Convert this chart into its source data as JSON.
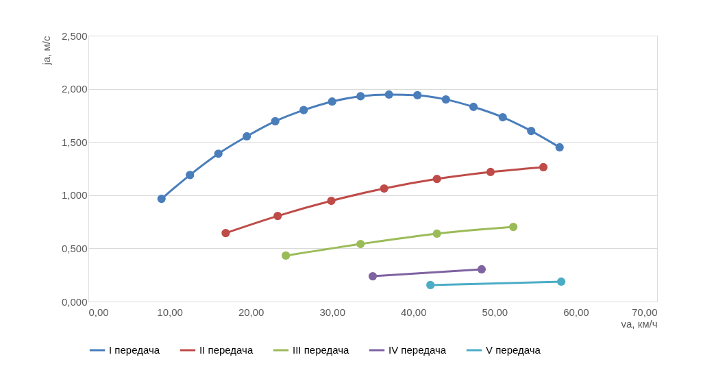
{
  "chart_data": {
    "type": "line",
    "xlabel": "va, км/ч",
    "ylabel": "ja, м/с",
    "xlim": [
      0,
      70
    ],
    "xticks": [
      {
        "value": 0,
        "label": "0,00"
      },
      {
        "value": 10,
        "label": "10,00"
      },
      {
        "value": 20,
        "label": "20,00"
      },
      {
        "value": 30,
        "label": "30,00"
      },
      {
        "value": 40,
        "label": "40,00"
      },
      {
        "value": 50,
        "label": "50,00"
      },
      {
        "value": 60,
        "label": "60,00"
      },
      {
        "value": 70,
        "label": "70,00"
      }
    ],
    "ylim": [
      0,
      2.5
    ],
    "yticks": [
      {
        "value": 0,
        "label": "0,000"
      },
      {
        "value": 0.5,
        "label": "0,500"
      },
      {
        "value": 1,
        "label": "1,000"
      },
      {
        "value": 1.5,
        "label": "1,500"
      },
      {
        "value": 2,
        "label": "2,000"
      },
      {
        "value": 2.5,
        "label": "2,500"
      }
    ],
    "grid": "y",
    "legend": "bottom",
    "marker": "circle",
    "line_style": "solid",
    "series": [
      {
        "name": "I передача",
        "color": "#4a7ebb",
        "x": [
          9.0,
          12.5,
          16.0,
          19.5,
          23.0,
          26.5,
          30.0,
          33.5,
          37.0,
          40.5,
          44.0,
          47.4,
          51.0,
          54.5,
          58.0
        ],
        "values": [
          0.966,
          1.19,
          1.39,
          1.553,
          1.695,
          1.8,
          1.88,
          1.93,
          1.946,
          1.94,
          1.9,
          1.83,
          1.733,
          1.604,
          1.45
        ]
      },
      {
        "name": "II передача",
        "color": "#be4b48",
        "x": [
          16.9,
          23.3,
          29.9,
          36.4,
          42.9,
          49.5,
          56.0
        ],
        "values": [
          0.644,
          0.805,
          0.947,
          1.063,
          1.153,
          1.218,
          1.263
        ]
      },
      {
        "name": "III передача",
        "color": "#9bbb59",
        "x": [
          24.3,
          33.5,
          42.9,
          52.3
        ],
        "values": [
          0.432,
          0.541,
          0.638,
          0.702
        ]
      },
      {
        "name": "IV передача",
        "color": "#7f63a1",
        "x": [
          35.0,
          48.4
        ],
        "values": [
          0.238,
          0.303
        ]
      },
      {
        "name": "V передача",
        "color": "#4bacc6",
        "x": [
          42.1,
          58.2
        ],
        "values": [
          0.155,
          0.187
        ]
      }
    ]
  }
}
